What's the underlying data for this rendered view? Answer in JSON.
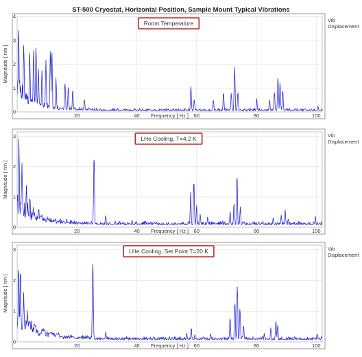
{
  "title": "ST-500 Cryostat, Horizontal Position, Sample Mount Typical Vibrations",
  "chart_data": [
    {
      "type": "line",
      "annotation": "Room Temperature",
      "legend": [
        "Vib",
        "Displacement"
      ],
      "legend_position": "right",
      "xlabel": "Frequency [ Hz ]",
      "ylabel": "Magnitude [ nm ]",
      "xlim": [
        0,
        102
      ],
      "ylim": [
        0,
        4
      ],
      "xticks": [
        20,
        40,
        60,
        80,
        100
      ],
      "yticks": [
        0,
        1,
        2,
        3,
        4
      ],
      "grid": true,
      "color": "#2a2ad6",
      "noise": {
        "seed": 11,
        "lowAmp": 0.9,
        "lowDecay": 4.5,
        "floor": 0.05,
        "floorAmp": 0.12
      },
      "peaks": [
        [
          0.5,
          3.9
        ],
        [
          2.2,
          3.25
        ],
        [
          4.2,
          2.9
        ],
        [
          5.5,
          2.85
        ],
        [
          6.3,
          3.1
        ],
        [
          7.1,
          2.0
        ],
        [
          8.3,
          1.9
        ],
        [
          9.6,
          2.3
        ],
        [
          11.1,
          2.75
        ],
        [
          11.6,
          2.85
        ],
        [
          13.0,
          1.5
        ],
        [
          16.0,
          1.4
        ],
        [
          17.1,
          1.1
        ],
        [
          18.6,
          1.05
        ],
        [
          22.5,
          0.6
        ],
        [
          58.1,
          1.2
        ],
        [
          59.2,
          0.6
        ],
        [
          65.6,
          0.55
        ],
        [
          69.0,
          0.9
        ],
        [
          71.6,
          0.85
        ],
        [
          72.7,
          2.05
        ],
        [
          73.8,
          0.95
        ],
        [
          80.1,
          0.6
        ],
        [
          84.4,
          0.55
        ],
        [
          86.0,
          0.95
        ],
        [
          87.2,
          1.6
        ],
        [
          87.9,
          1.3
        ],
        [
          88.8,
          0.95
        ],
        [
          100.6,
          0.25
        ]
      ]
    },
    {
      "type": "line",
      "annotation": "LHe Cooling, T=4.2 K",
      "legend": [
        "Vib",
        "Displacement"
      ],
      "legend_position": "right",
      "xlabel": "Frequency [ Hz ]",
      "ylabel": "Magnitude [ nm ]",
      "xlim": [
        0,
        102
      ],
      "ylim": [
        0,
        3.15
      ],
      "xticks": [
        20,
        40,
        60,
        80,
        100
      ],
      "yticks": [
        0,
        1,
        2,
        3
      ],
      "grid": true,
      "color": "#2a2ad6",
      "noise": {
        "seed": 23,
        "lowAmp": 0.65,
        "lowDecay": 5,
        "floor": 0.08,
        "floorAmp": 0.14
      },
      "peaks": [
        [
          0.6,
          3.1
        ],
        [
          1.6,
          2.2
        ],
        [
          3.1,
          1.5
        ],
        [
          4.3,
          1.1
        ],
        [
          5.4,
          0.7
        ],
        [
          7.2,
          0.7
        ],
        [
          25.7,
          2.75
        ],
        [
          29.6,
          0.45
        ],
        [
          38.4,
          0.25
        ],
        [
          45.8,
          0.2
        ],
        [
          58.0,
          1.2
        ],
        [
          59.1,
          1.65
        ],
        [
          60.0,
          0.8
        ],
        [
          61.2,
          0.45
        ],
        [
          63.7,
          0.35
        ],
        [
          71.2,
          0.55
        ],
        [
          72.5,
          0.9
        ],
        [
          73.5,
          1.9
        ],
        [
          74.6,
          0.7
        ],
        [
          85.6,
          0.35
        ],
        [
          88.3,
          0.45
        ],
        [
          89.6,
          0.6
        ],
        [
          90.6,
          0.3
        ],
        [
          99.7,
          0.4
        ]
      ]
    },
    {
      "type": "line",
      "annotation": "LHe Cooling, Set Point T=20 K",
      "legend": [
        "Vib",
        "Displacement"
      ],
      "legend_position": "right",
      "xlabel": "Frequency [ Hz ]",
      "ylabel": "Magnitude [ nm ]",
      "xlim": [
        0,
        102
      ],
      "ylim": [
        0,
        3.15
      ],
      "xticks": [
        20,
        40,
        60,
        80,
        100
      ],
      "yticks": [
        0,
        1,
        2,
        3
      ],
      "grid": true,
      "color": "#2a2ad6",
      "noise": {
        "seed": 37,
        "lowAmp": 0.75,
        "lowDecay": 6,
        "floor": 0.07,
        "floorAmp": 0.12
      },
      "peaks": [
        [
          0.5,
          2.7
        ],
        [
          1.1,
          2.65
        ],
        [
          2.2,
          1.7
        ],
        [
          3.4,
          1.1
        ],
        [
          4.0,
          0.85
        ],
        [
          6.2,
          0.65
        ],
        [
          9.1,
          0.45
        ],
        [
          11.3,
          0.4
        ],
        [
          25.3,
          3.05
        ],
        [
          29.6,
          0.35
        ],
        [
          56.7,
          0.3
        ],
        [
          58.2,
          0.5
        ],
        [
          59.4,
          0.25
        ],
        [
          64.7,
          0.3
        ],
        [
          71.2,
          0.9
        ],
        [
          72.8,
          1.5
        ],
        [
          73.6,
          2.05
        ],
        [
          74.5,
          1.2
        ],
        [
          75.7,
          0.6
        ],
        [
          82.6,
          0.3
        ],
        [
          84.8,
          0.5
        ],
        [
          86.5,
          0.8
        ],
        [
          87.1,
          0.6
        ],
        [
          100.3,
          0.3
        ]
      ]
    }
  ]
}
